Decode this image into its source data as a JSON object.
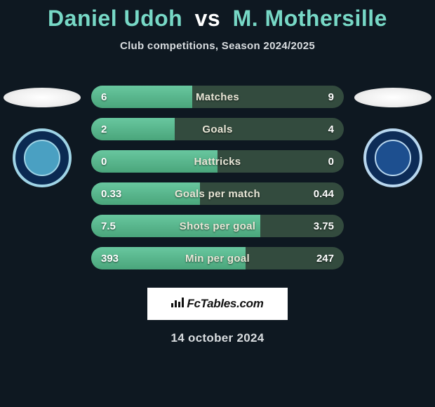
{
  "title": {
    "player1": "Daniel Udoh",
    "vs": "vs",
    "player2": "M. Mothersille"
  },
  "subtitle": "Club competitions, Season 2024/2025",
  "date": "14 october 2024",
  "watermark": "FcTables.com",
  "colors": {
    "accent": "#77d8c6",
    "bg": "#0e1821",
    "bar_bg": "#334b3e",
    "bar_fill_start": "#68c79f",
    "bar_fill_end": "#4aa57b",
    "text_light": "#e9e7d7"
  },
  "badges": {
    "left": {
      "outer_bg": "#0b2a52",
      "ring": "#9fd4e6",
      "inner_bg": "#4aa0c2",
      "name": "wycombe-crest"
    },
    "right": {
      "outer_bg": "#0d2c57",
      "ring": "#b8d7ef",
      "inner_bg": "#1d4f8f",
      "name": "peterborough-crest"
    }
  },
  "stats": {
    "bar_total_width": 360,
    "rows": [
      {
        "label": "Matches",
        "left_val": "6",
        "right_val": "9",
        "fill_pct": 40
      },
      {
        "label": "Goals",
        "left_val": "2",
        "right_val": "4",
        "fill_pct": 33
      },
      {
        "label": "Hattricks",
        "left_val": "0",
        "right_val": "0",
        "fill_pct": 50
      },
      {
        "label": "Goals per match",
        "left_val": "0.33",
        "right_val": "0.44",
        "fill_pct": 43
      },
      {
        "label": "Shots per goal",
        "left_val": "7.5",
        "right_val": "3.75",
        "fill_pct": 67
      },
      {
        "label": "Min per goal",
        "left_val": "393",
        "right_val": "247",
        "fill_pct": 61
      }
    ]
  }
}
